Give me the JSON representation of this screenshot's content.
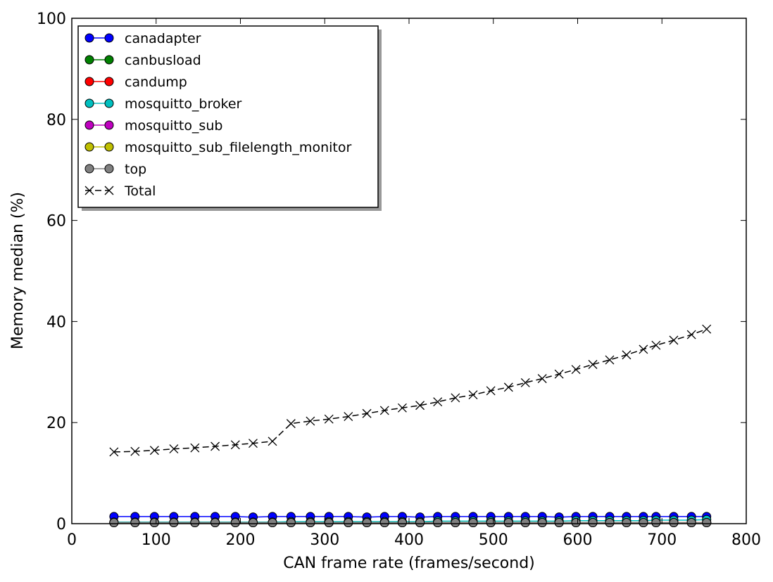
{
  "chart_data": {
    "type": "line",
    "title": "",
    "xlabel": "CAN frame rate (frames/second)",
    "ylabel": "Memory median (%)",
    "xlim": [
      0,
      800
    ],
    "ylim": [
      0,
      100
    ],
    "xticks": [
      0,
      100,
      200,
      300,
      400,
      500,
      600,
      700,
      800
    ],
    "yticks": [
      0,
      20,
      40,
      60,
      80,
      100
    ],
    "grid": false,
    "legend_position": "top-left",
    "x": [
      50,
      75,
      98,
      121,
      146,
      170,
      194,
      215,
      238,
      260,
      283,
      305,
      328,
      350,
      371,
      392,
      413,
      434,
      455,
      476,
      497,
      518,
      538,
      558,
      578,
      598,
      618,
      638,
      658,
      678,
      693,
      714,
      735,
      753
    ],
    "series": [
      {
        "name": "canadapter",
        "color": "#0000ff",
        "marker": "circle",
        "line": "solid",
        "values": [
          1.4,
          1.4,
          1.4,
          1.4,
          1.4,
          1.4,
          1.4,
          1.3,
          1.4,
          1.4,
          1.4,
          1.4,
          1.4,
          1.3,
          1.4,
          1.4,
          1.3,
          1.4,
          1.4,
          1.4,
          1.4,
          1.4,
          1.4,
          1.4,
          1.3,
          1.4,
          1.4,
          1.4,
          1.4,
          1.4,
          1.4,
          1.4,
          1.4,
          1.4
        ]
      },
      {
        "name": "canbusload",
        "color": "#008000",
        "marker": "circle",
        "line": "solid",
        "values": [
          0.2,
          0.2,
          0.2,
          0.2,
          0.2,
          0.2,
          0.2,
          0.2,
          0.2,
          0.2,
          0.2,
          0.2,
          0.2,
          0.2,
          0.2,
          0.2,
          0.2,
          0.2,
          0.2,
          0.2,
          0.2,
          0.2,
          0.2,
          0.2,
          0.2,
          0.2,
          0.2,
          0.2,
          0.2,
          0.2,
          0.2,
          0.2,
          0.2,
          0.2
        ]
      },
      {
        "name": "candump",
        "color": "#ff0000",
        "marker": "circle",
        "line": "solid",
        "values": [
          0.2,
          0.2,
          0.2,
          0.2,
          0.2,
          0.2,
          0.2,
          0.2,
          0.2,
          0.2,
          0.2,
          0.2,
          0.2,
          0.2,
          0.2,
          0.2,
          0.2,
          0.2,
          0.2,
          0.2,
          0.2,
          0.2,
          0.2,
          0.2,
          0.2,
          0.2,
          0.2,
          0.2,
          0.2,
          0.2,
          0.2,
          0.2,
          0.2,
          0.2
        ]
      },
      {
        "name": "mosquitto_broker",
        "color": "#00bfbf",
        "marker": "circle",
        "line": "solid",
        "values": [
          0.3,
          0.3,
          0.3,
          0.3,
          0.3,
          0.3,
          0.3,
          0.3,
          0.3,
          0.4,
          0.4,
          0.4,
          0.4,
          0.4,
          0.4,
          0.4,
          0.4,
          0.5,
          0.5,
          0.5,
          0.5,
          0.5,
          0.5,
          0.5,
          0.5,
          0.6,
          0.6,
          0.6,
          0.6,
          0.6,
          0.7,
          0.7,
          0.7,
          0.8
        ]
      },
      {
        "name": "mosquitto_sub",
        "color": "#bf00bf",
        "marker": "circle",
        "line": "solid",
        "values": [
          0.2,
          0.2,
          0.2,
          0.2,
          0.2,
          0.2,
          0.2,
          0.2,
          0.2,
          0.2,
          0.2,
          0.2,
          0.2,
          0.2,
          0.2,
          0.2,
          0.2,
          0.2,
          0.2,
          0.2,
          0.2,
          0.2,
          0.2,
          0.2,
          0.2,
          0.2,
          0.2,
          0.2,
          0.2,
          0.2,
          0.2,
          0.2,
          0.2,
          0.2
        ]
      },
      {
        "name": "mosquitto_sub_filelength_monitor",
        "color": "#bfbf00",
        "marker": "circle",
        "line": "solid",
        "values": [
          0.2,
          0.2,
          0.2,
          0.2,
          0.2,
          0.2,
          0.2,
          0.2,
          0.2,
          0.2,
          0.2,
          0.2,
          0.2,
          0.2,
          0.2,
          0.2,
          0.2,
          0.2,
          0.2,
          0.2,
          0.2,
          0.2,
          0.2,
          0.2,
          0.2,
          0.2,
          0.2,
          0.2,
          0.2,
          0.2,
          0.2,
          0.2,
          0.2,
          0.2
        ]
      },
      {
        "name": "top",
        "color": "#808080",
        "marker": "circle",
        "line": "solid",
        "values": [
          0.2,
          0.2,
          0.2,
          0.2,
          0.2,
          0.2,
          0.2,
          0.2,
          0.2,
          0.2,
          0.2,
          0.2,
          0.2,
          0.2,
          0.2,
          0.2,
          0.2,
          0.2,
          0.2,
          0.2,
          0.2,
          0.2,
          0.2,
          0.2,
          0.2,
          0.2,
          0.2,
          0.2,
          0.2,
          0.2,
          0.2,
          0.2,
          0.2,
          0.2
        ]
      },
      {
        "name": "Total",
        "color": "#000000",
        "marker": "x",
        "line": "dashed",
        "values": [
          14.2,
          14.3,
          14.5,
          14.8,
          15.0,
          15.3,
          15.6,
          15.9,
          16.3,
          19.8,
          20.3,
          20.7,
          21.2,
          21.8,
          22.4,
          22.9,
          23.4,
          24.1,
          24.9,
          25.5,
          26.3,
          27.0,
          27.9,
          28.7,
          29.6,
          30.5,
          31.5,
          32.4,
          33.4,
          34.5,
          35.3,
          36.3,
          37.4,
          38.5
        ]
      }
    ]
  }
}
